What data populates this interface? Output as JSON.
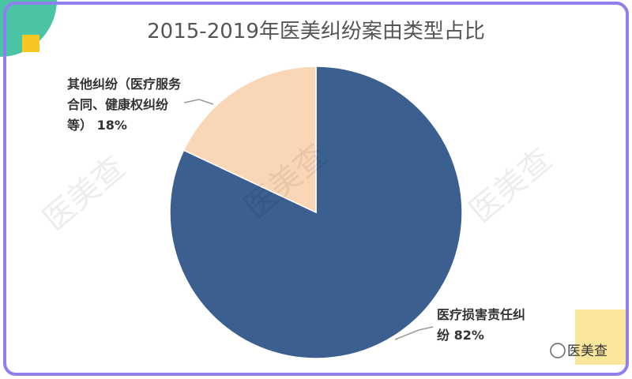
{
  "chart_data": {
    "type": "pie",
    "title": "2015-2019年医美纠纷案由类型占比",
    "categories": [
      "医疗损害责任纠纷",
      "其他纠纷（医疗服务合同、健康权纠纷等）"
    ],
    "values": [
      82,
      18
    ],
    "value_labels": [
      "82%",
      "18%"
    ],
    "colors": [
      "#3b5f8e",
      "#f9d6b6"
    ]
  },
  "watermark": "医美查",
  "source": "医美查"
}
